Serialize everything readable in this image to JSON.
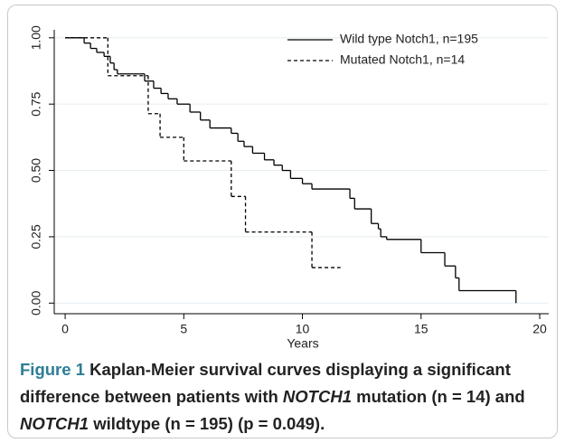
{
  "chart_data": {
    "type": "step",
    "xlabel": "Years",
    "xlim": [
      -0.46,
      20.38
    ],
    "ylim": [
      -0.04,
      1.03
    ],
    "xticks": [
      0,
      5,
      10,
      15,
      20
    ],
    "yticks": [
      {
        "value": 0,
        "label": "0.00"
      },
      {
        "value": 0.25,
        "label": "0.25"
      },
      {
        "value": 0.5,
        "label": "0.50"
      },
      {
        "value": 0.75,
        "label": "0.75"
      },
      {
        "value": 1,
        "label": "1.00"
      }
    ],
    "grid": true,
    "legend": "upper right",
    "series": [
      {
        "name": "Wild type Notch1, n=195",
        "color": "#000000",
        "dash": "solid",
        "x": [
          0,
          0.8,
          1.07,
          1.33,
          1.64,
          1.9,
          2.06,
          2.2,
          3.35,
          3.73,
          4.04,
          4.34,
          4.72,
          5.26,
          5.7,
          6.1,
          7.0,
          7.28,
          7.54,
          7.9,
          8.4,
          8.8,
          9.15,
          9.5,
          10.0,
          10.4,
          12.0,
          12.2,
          12.9,
          13.2,
          13.3,
          13.55,
          15.0,
          16.0,
          16.45,
          16.6,
          19.0
        ],
        "values": [
          1.0,
          0.98,
          0.96,
          0.945,
          0.93,
          0.905,
          0.88,
          0.864,
          0.837,
          0.81,
          0.79,
          0.77,
          0.75,
          0.72,
          0.69,
          0.66,
          0.64,
          0.61,
          0.59,
          0.565,
          0.54,
          0.52,
          0.5,
          0.47,
          0.45,
          0.43,
          0.395,
          0.355,
          0.3,
          0.28,
          0.25,
          0.24,
          0.19,
          0.14,
          0.095,
          0.047,
          0.0
        ]
      },
      {
        "name": "Mutated Notch1, n=14",
        "color": "#000000",
        "dash": "dashed",
        "x": [
          0,
          1.8,
          3.5,
          4.0,
          5.0,
          7.0,
          7.6,
          10.4,
          11.6
        ],
        "values": [
          1.0,
          0.857,
          0.714,
          0.625,
          0.536,
          0.402,
          0.268,
          0.134,
          0.134
        ]
      }
    ]
  },
  "caption": {
    "label": "Figure 1",
    "parts": [
      {
        "text": " Kaplan-Meier survival curves displaying a significant difference between patients with "
      },
      {
        "text": "NOTCH1",
        "italic": true
      },
      {
        "text": " mutation (n = 14) and "
      },
      {
        "text": "NOTCH1",
        "italic": true
      },
      {
        "text": " wildtype (n = 195) (p = 0.049)."
      }
    ]
  }
}
